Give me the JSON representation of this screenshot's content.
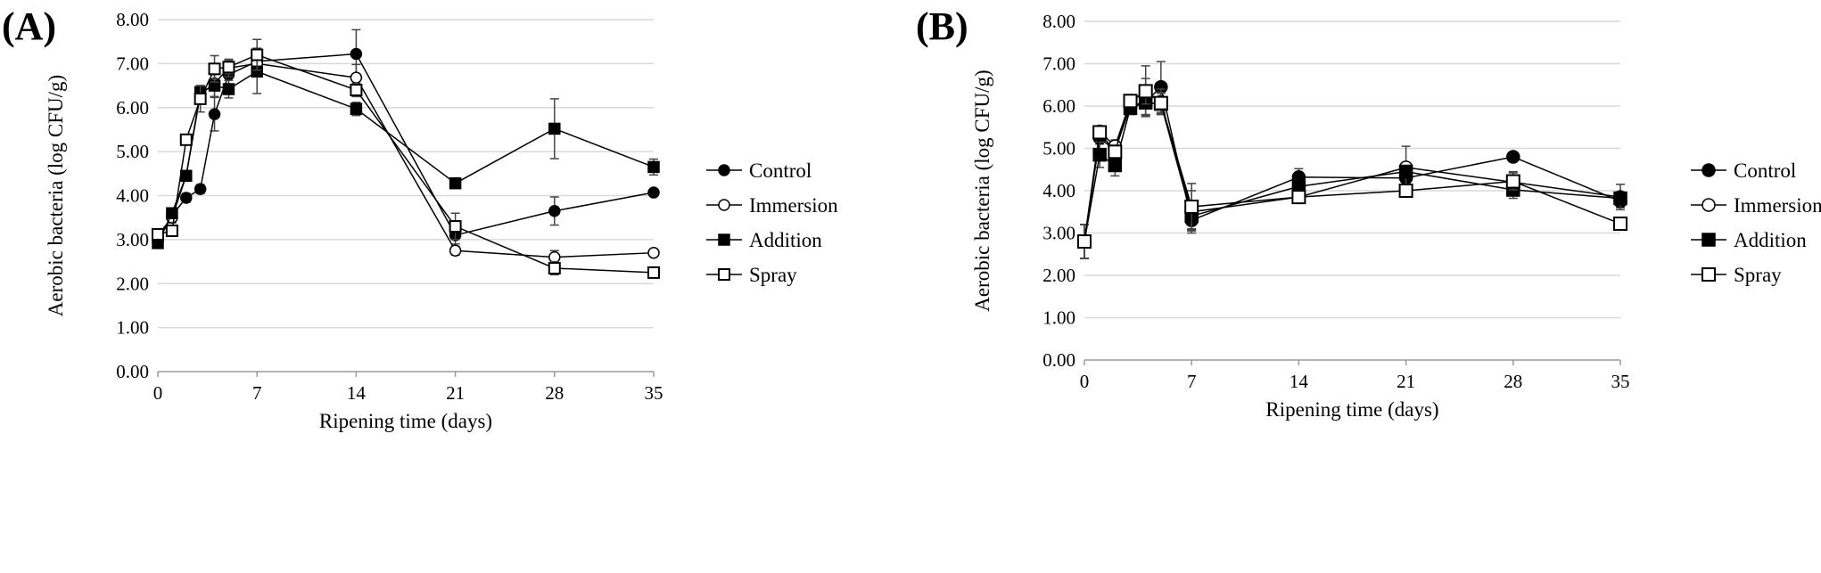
{
  "chart_data": [
    {
      "type": "line",
      "panel_label": "(A)",
      "xlabel": "Ripening time (days)",
      "ylabel": "Aerobic bacteria  (log CFU/g)",
      "xlim": [
        0,
        35
      ],
      "ylim": [
        0,
        8
      ],
      "xticks": [
        0,
        7,
        14,
        21,
        28,
        35
      ],
      "yticks": [
        0,
        1,
        2,
        3,
        4,
        5,
        6,
        7,
        8
      ],
      "ytick_labels": [
        "0.00",
        "1.00",
        "2.00",
        "3.00",
        "4.00",
        "5.00",
        "6.00",
        "7.00",
        "8.00"
      ],
      "grid": "horizontal",
      "legend_position": "right",
      "x": [
        0,
        1,
        2,
        3,
        4,
        5,
        7,
        14,
        21,
        28,
        35
      ],
      "series": [
        {
          "name": "Control",
          "marker": "filled-circle",
          "values": [
            2.95,
            3.55,
            3.95,
            4.15,
            5.85,
            6.75,
            7.05,
            7.22,
            3.1,
            3.65,
            4.07
          ],
          "errors": [
            0.08,
            0.1,
            0.1,
            0.1,
            0.38,
            0.25,
            0.3,
            0.55,
            0.2,
            0.32,
            0.08
          ]
        },
        {
          "name": "Immersion",
          "marker": "open-circle",
          "values": [
            3.1,
            3.5,
            4.45,
            6.3,
            6.55,
            6.9,
            7.0,
            6.68,
            2.75,
            2.6,
            2.7
          ],
          "errors": [
            0.08,
            0.12,
            0.1,
            0.2,
            0.3,
            0.2,
            0.25,
            0.3,
            0.1,
            0.15,
            0.08
          ]
        },
        {
          "name": "Addition",
          "marker": "filled-square",
          "values": [
            2.92,
            3.6,
            4.45,
            6.35,
            6.5,
            6.42,
            6.82,
            5.97,
            4.28,
            5.52,
            4.65
          ],
          "errors": [
            0.08,
            0.1,
            0.1,
            0.15,
            0.25,
            0.2,
            0.5,
            0.15,
            0.08,
            0.68,
            0.18
          ]
        },
        {
          "name": "Spray",
          "marker": "open-square",
          "values": [
            3.12,
            3.2,
            5.27,
            6.2,
            6.88,
            6.92,
            7.2,
            6.4,
            3.3,
            2.35,
            2.25
          ],
          "errors": [
            0.08,
            0.1,
            0.1,
            0.3,
            0.3,
            0.15,
            0.35,
            0.15,
            0.3,
            0.15,
            0.05
          ]
        }
      ]
    },
    {
      "type": "line",
      "panel_label": "(B)",
      "xlabel": "Ripening time (days)",
      "ylabel": "Aerobic bacteria  (log CFU/g)",
      "xlim": [
        0,
        35
      ],
      "ylim": [
        0,
        8
      ],
      "xticks": [
        0,
        7,
        14,
        21,
        28,
        35
      ],
      "yticks": [
        0,
        1,
        2,
        3,
        4,
        5,
        6,
        7,
        8
      ],
      "ytick_labels": [
        "0.00",
        "1.00",
        "2.00",
        "3.00",
        "4.00",
        "5.00",
        "6.00",
        "7.00",
        "8.00"
      ],
      "grid": "horizontal",
      "legend_position": "right",
      "x": [
        0,
        1,
        2,
        3,
        4,
        5,
        7,
        14,
        21,
        28,
        35
      ],
      "series": [
        {
          "name": "Control",
          "marker": "filled-circle",
          "values": [
            2.8,
            5.25,
            4.95,
            6.0,
            6.1,
            6.45,
            3.3,
            4.32,
            4.3,
            4.8,
            3.75
          ],
          "errors": [
            0.4,
            0.15,
            0.2,
            0.15,
            0.3,
            0.6,
            0.25,
            0.2,
            0.15,
            0.08,
            0.15
          ]
        },
        {
          "name": "Immersion",
          "marker": "open-circle",
          "values": [
            2.8,
            5.4,
            5.05,
            6.1,
            6.35,
            6.1,
            3.5,
            3.85,
            4.55,
            4.2,
            3.85
          ],
          "errors": [
            0.4,
            0.12,
            0.15,
            0.15,
            0.6,
            0.3,
            0.5,
            0.15,
            0.5,
            0.25,
            0.3
          ]
        },
        {
          "name": "Addition",
          "marker": "filled-square",
          "values": [
            2.8,
            4.85,
            4.6,
            5.95,
            6.08,
            6.05,
            3.4,
            4.1,
            4.45,
            4.02,
            3.82
          ],
          "errors": [
            0.4,
            0.3,
            0.25,
            0.15,
            0.3,
            0.25,
            0.3,
            0.15,
            0.15,
            0.2,
            0.15
          ]
        },
        {
          "name": "Spray",
          "marker": "open-square",
          "values": [
            2.8,
            5.38,
            4.92,
            6.12,
            6.35,
            6.07,
            3.62,
            3.85,
            4.0,
            4.22,
            3.22
          ],
          "errors": [
            0.4,
            0.1,
            0.15,
            0.15,
            0.3,
            0.25,
            0.55,
            0.1,
            0.15,
            0.2,
            0.15
          ]
        }
      ]
    }
  ]
}
